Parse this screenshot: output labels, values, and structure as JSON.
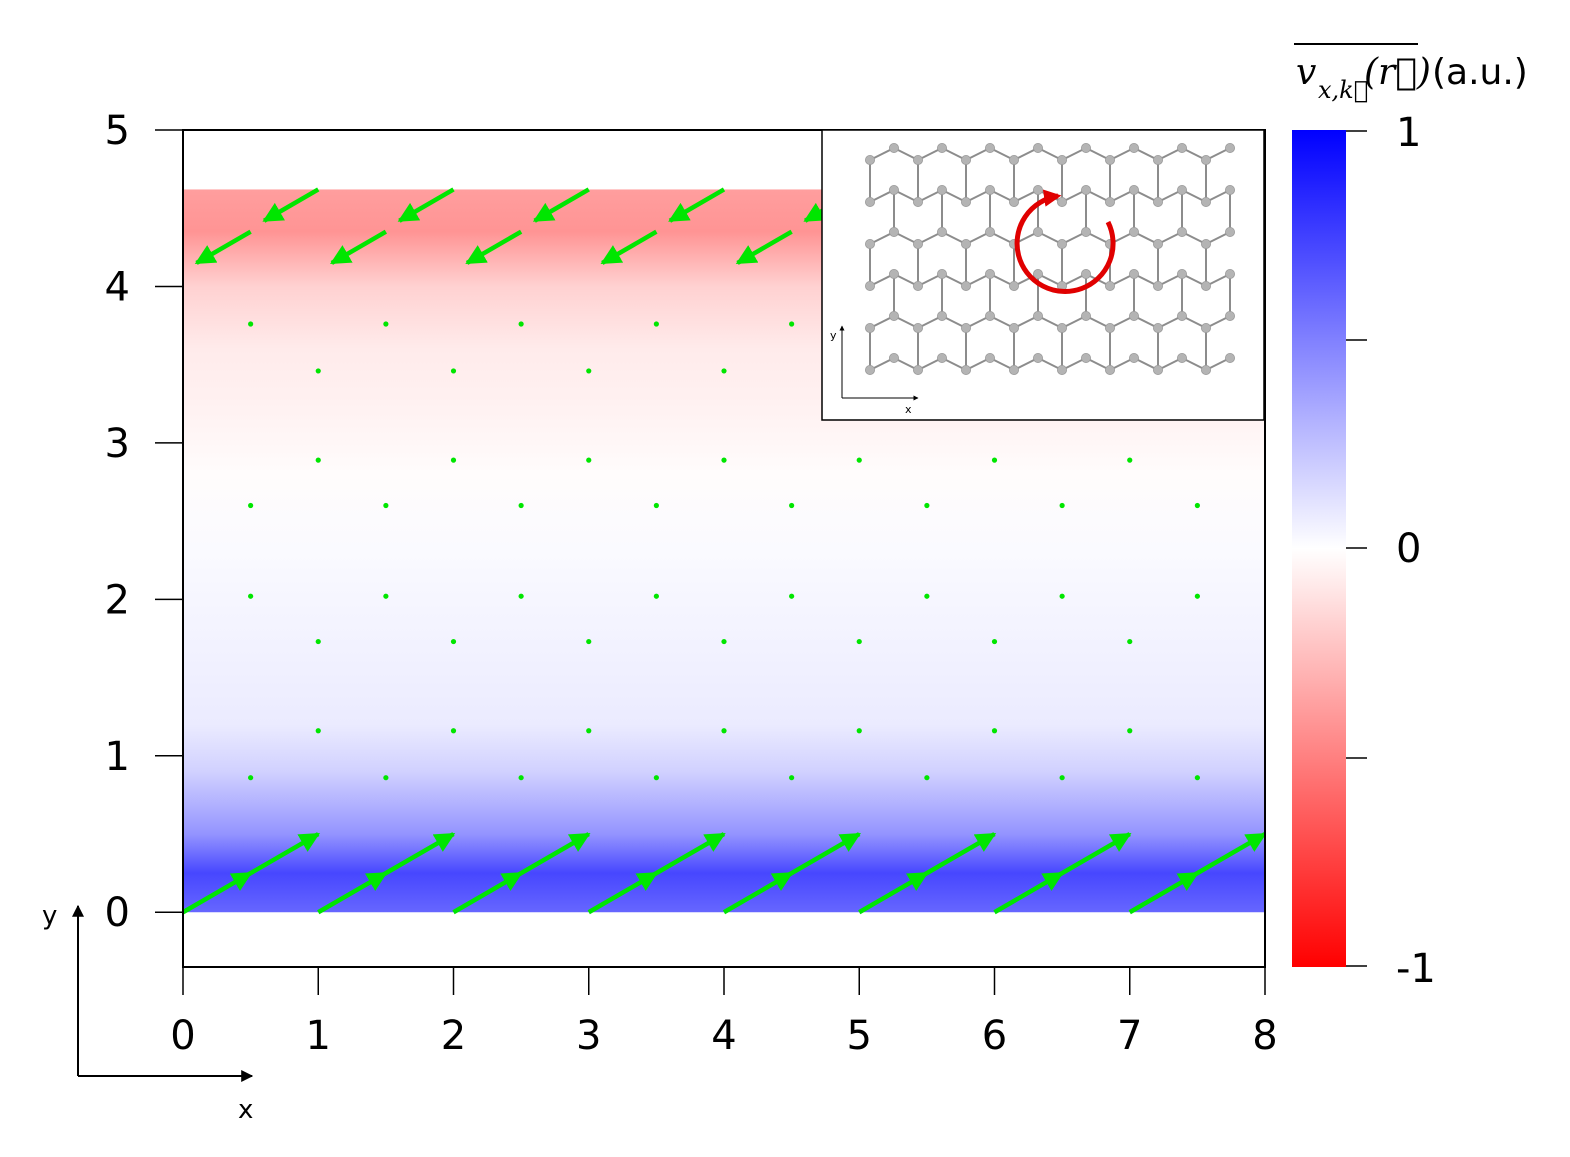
{
  "chart_data": {
    "type": "heatmap",
    "title": "",
    "xlim": [
      0,
      8
    ],
    "ylim": [
      -0.35,
      5
    ],
    "x_ticks": [
      0,
      1,
      2,
      3,
      4,
      5,
      6,
      7,
      8
    ],
    "y_ticks": [
      0,
      1,
      2,
      3,
      4,
      5
    ],
    "field": {
      "x_range": [
        0,
        8
      ],
      "y_range": [
        0,
        4.62
      ],
      "profile": [
        {
          "y": 0.0,
          "v": 0.6
        },
        {
          "y": 0.25,
          "v": 0.72
        },
        {
          "y": 0.5,
          "v": 0.42
        },
        {
          "y": 0.9,
          "v": 0.18
        },
        {
          "y": 1.2,
          "v": 0.08
        },
        {
          "y": 1.7,
          "v": 0.05
        },
        {
          "y": 2.3,
          "v": 0.02
        },
        {
          "y": 2.8,
          "v": -0.01
        },
        {
          "y": 3.2,
          "v": -0.05
        },
        {
          "y": 3.6,
          "v": -0.08
        },
        {
          "y": 4.0,
          "v": -0.18
        },
        {
          "y": 4.35,
          "v": -0.42
        },
        {
          "y": 4.62,
          "v": -0.38
        }
      ]
    },
    "quiver": {
      "color": "#00e600",
      "bottom_arrows": [
        {
          "x": 0.0,
          "y": 0.0,
          "dx": 0.5,
          "dy": 0.25
        },
        {
          "x": 0.5,
          "y": 0.25,
          "dx": 0.5,
          "dy": 0.25
        },
        {
          "x": 1.0,
          "y": 0.0,
          "dx": 0.5,
          "dy": 0.25
        },
        {
          "x": 1.5,
          "y": 0.25,
          "dx": 0.5,
          "dy": 0.25
        },
        {
          "x": 2.0,
          "y": 0.0,
          "dx": 0.5,
          "dy": 0.25
        },
        {
          "x": 2.5,
          "y": 0.25,
          "dx": 0.5,
          "dy": 0.25
        },
        {
          "x": 3.0,
          "y": 0.0,
          "dx": 0.5,
          "dy": 0.25
        },
        {
          "x": 3.5,
          "y": 0.25,
          "dx": 0.5,
          "dy": 0.25
        },
        {
          "x": 4.0,
          "y": 0.0,
          "dx": 0.5,
          "dy": 0.25
        },
        {
          "x": 4.5,
          "y": 0.25,
          "dx": 0.5,
          "dy": 0.25
        },
        {
          "x": 5.0,
          "y": 0.0,
          "dx": 0.5,
          "dy": 0.25
        },
        {
          "x": 5.5,
          "y": 0.25,
          "dx": 0.5,
          "dy": 0.25
        },
        {
          "x": 6.0,
          "y": 0.0,
          "dx": 0.5,
          "dy": 0.25
        },
        {
          "x": 6.5,
          "y": 0.25,
          "dx": 0.5,
          "dy": 0.25
        },
        {
          "x": 7.0,
          "y": 0.0,
          "dx": 0.5,
          "dy": 0.25
        },
        {
          "x": 7.5,
          "y": 0.25,
          "dx": 0.5,
          "dy": 0.25
        }
      ],
      "top_arrows": [
        {
          "x": 0.5,
          "y": 4.35,
          "dx": -0.4,
          "dy": -0.2
        },
        {
          "x": 1.0,
          "y": 4.62,
          "dx": -0.4,
          "dy": -0.2
        },
        {
          "x": 1.5,
          "y": 4.35,
          "dx": -0.4,
          "dy": -0.2
        },
        {
          "x": 2.0,
          "y": 4.62,
          "dx": -0.4,
          "dy": -0.2
        },
        {
          "x": 2.5,
          "y": 4.35,
          "dx": -0.4,
          "dy": -0.2
        },
        {
          "x": 3.0,
          "y": 4.62,
          "dx": -0.4,
          "dy": -0.2
        },
        {
          "x": 3.5,
          "y": 4.35,
          "dx": -0.4,
          "dy": -0.2
        },
        {
          "x": 4.0,
          "y": 4.62,
          "dx": -0.4,
          "dy": -0.2
        },
        {
          "x": 4.5,
          "y": 4.35,
          "dx": -0.4,
          "dy": -0.2
        },
        {
          "x": 5.0,
          "y": 4.62,
          "dx": -0.4,
          "dy": -0.2
        }
      ],
      "dots": {
        "rows": [
          {
            "y": 3.76,
            "x0": 0.5,
            "x1": 4.5
          },
          {
            "y": 3.46,
            "x0": 1.0,
            "x1": 4.0
          },
          {
            "y": 2.89,
            "x0": 1.0,
            "x1": 7.0
          },
          {
            "y": 2.6,
            "x0": 0.5,
            "x1": 7.5
          },
          {
            "y": 2.02,
            "x0": 0.5,
            "x1": 7.5
          },
          {
            "y": 1.73,
            "x0": 1.0,
            "x1": 7.0
          },
          {
            "y": 1.16,
            "x0": 1.0,
            "x1": 7.0
          },
          {
            "y": 0.86,
            "x0": 0.5,
            "x1": 7.5
          }
        ]
      }
    },
    "colorbar": {
      "title_symbol": "v",
      "title_subscript": "x,k⃗",
      "title_argument": "(r⃗)",
      "title_unit": "(a.u.)",
      "min_label": "-1",
      "mid_label": "0",
      "max_label": "1",
      "range": [
        -1,
        1
      ],
      "colors": {
        "low": "#ff0000",
        "mid": "#ffffff",
        "high": "#0000ff"
      }
    },
    "axes_indicator": {
      "x_label": "x",
      "y_label": "y"
    },
    "inset": {
      "x_label": "x",
      "y_label": "y",
      "atom_color": "#b4b4b4",
      "bond_color": "#8c8c8c",
      "rotation_arrow_color": "#e00000"
    }
  }
}
